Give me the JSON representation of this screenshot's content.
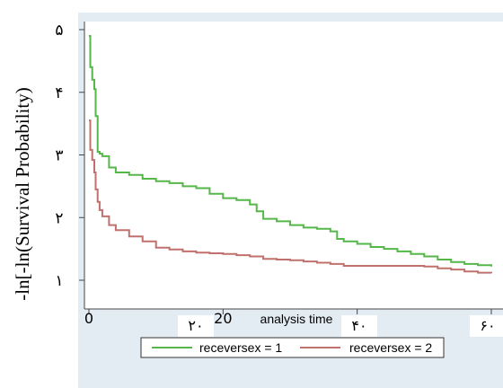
{
  "chart_data": {
    "type": "line",
    "ylabel": "-ln[-ln(Survival Probability)",
    "xlabel": "analysis time",
    "ylim": [
      1,
      5
    ],
    "xlim": [
      0,
      60
    ],
    "yticks": [
      {
        "value": 1,
        "label": "۱"
      },
      {
        "value": 2,
        "label": "۲"
      },
      {
        "value": 3,
        "label": "۳"
      },
      {
        "value": 4,
        "label": "۴"
      },
      {
        "value": 5,
        "label": "۵"
      }
    ],
    "xticks": [
      {
        "value": 0,
        "label": "0"
      },
      {
        "value": 20,
        "label": "20"
      }
    ],
    "xtick_overlays": [
      {
        "value": 15,
        "label": "۲۰"
      },
      {
        "value": 38,
        "label": "۴۰"
      },
      {
        "value": 60,
        "label": "۶۰"
      }
    ],
    "legend_position": "bottom",
    "plot_background": "#ffffff",
    "outer_background": "#e4ecf3",
    "series": [
      {
        "name": "receversex = 1",
        "color": "#55b64a",
        "x": [
          0,
          0.2,
          0.5,
          0.8,
          1,
          1.3,
          1.6,
          2,
          3,
          4,
          6,
          8,
          10,
          12,
          14,
          16,
          18,
          20,
          22,
          24,
          25,
          26,
          28,
          30,
          32,
          34,
          36,
          37,
          38,
          40,
          42,
          44,
          46,
          48,
          50,
          52,
          54,
          56,
          58,
          60
        ],
        "y": [
          4.9,
          4.4,
          4.2,
          4.05,
          3.62,
          3.05,
          3.02,
          2.98,
          2.8,
          2.72,
          2.68,
          2.62,
          2.58,
          2.55,
          2.5,
          2.47,
          2.38,
          2.31,
          2.28,
          2.21,
          2.1,
          1.98,
          1.94,
          1.88,
          1.84,
          1.82,
          1.78,
          1.66,
          1.62,
          1.58,
          1.53,
          1.5,
          1.46,
          1.42,
          1.38,
          1.33,
          1.29,
          1.26,
          1.24,
          1.22
        ]
      },
      {
        "name": "receversex = 2",
        "color": "#c0706d",
        "x": [
          0,
          0.2,
          0.5,
          0.8,
          1,
          1.3,
          1.6,
          2,
          3,
          4,
          6,
          8,
          10,
          12,
          14,
          16,
          18,
          20,
          22,
          24,
          26,
          28,
          30,
          32,
          34,
          36,
          38,
          40,
          42,
          44,
          46,
          48,
          50,
          52,
          54,
          56,
          58,
          60
        ],
        "y": [
          3.55,
          3.08,
          2.92,
          2.72,
          2.45,
          2.25,
          2.12,
          2.02,
          1.88,
          1.8,
          1.7,
          1.62,
          1.52,
          1.49,
          1.46,
          1.44,
          1.43,
          1.42,
          1.4,
          1.38,
          1.34,
          1.33,
          1.32,
          1.3,
          1.28,
          1.26,
          1.23,
          1.23,
          1.23,
          1.23,
          1.23,
          1.23,
          1.22,
          1.19,
          1.17,
          1.14,
          1.12,
          1.11
        ]
      }
    ]
  }
}
